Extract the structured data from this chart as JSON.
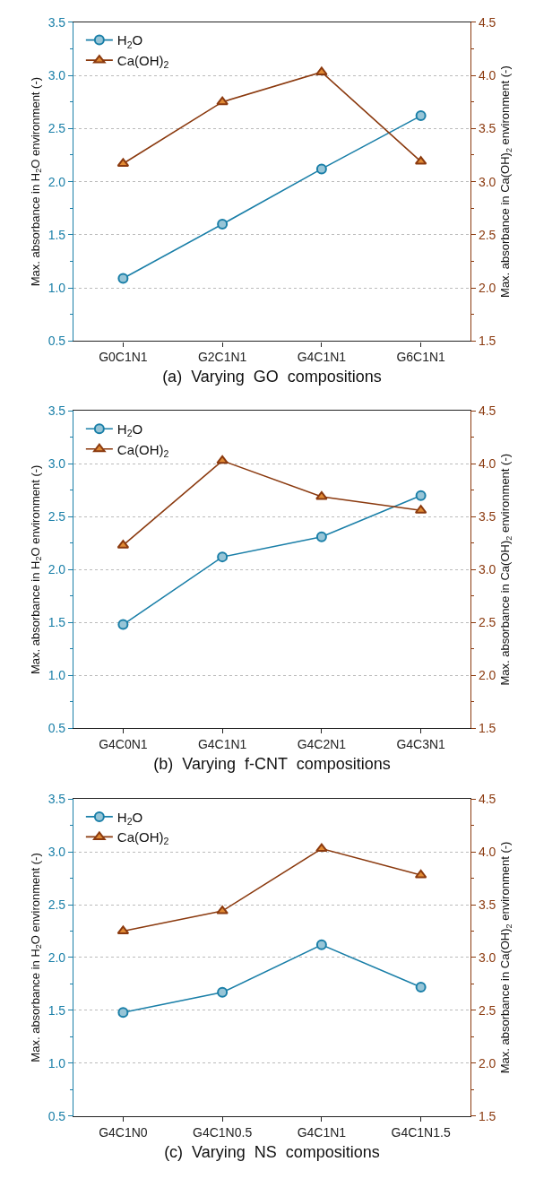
{
  "chart_data": [
    {
      "type": "line",
      "xlabel": "(a)  Varying  GO  compositions",
      "ylabel": "Max. absorbance in H$_{2}$O environment (-)",
      "y2label": "Max. absorbance in Ca(OH)$_{2}$ environment (-)",
      "categories": [
        "G0C1N1",
        "G2C1N1",
        "G4C1N1",
        "G6C1N1"
      ],
      "series": [
        {
          "name": "H$_{2}$O",
          "color": "#1a7fa8",
          "marker": "circle",
          "values": [
            1.09,
            1.6,
            2.12,
            2.62
          ]
        },
        {
          "name": "Ca(OH)$_{2}$",
          "color": "#8b3a0f",
          "marker": "triangle",
          "axis": "y2",
          "values": [
            3.17,
            3.75,
            4.03,
            3.19
          ]
        }
      ],
      "ylim": [
        0.5,
        3.5
      ],
      "yticks": [
        0.5,
        {
          "value": 1,
          "label": "1.0"
        },
        1.5,
        {
          "value": 2,
          "label": "2.0"
        },
        2.5,
        {
          "value": 3,
          "label": "3.0"
        },
        3.5
      ],
      "y2lim": [
        1.5,
        4.5
      ],
      "y2ticks": [
        1.5,
        {
          "value": 2,
          "label": "2.0"
        },
        2.5,
        {
          "value": 3,
          "label": "3.0"
        },
        3.5,
        {
          "value": 4,
          "label": "4.0"
        },
        4.5
      ],
      "grid": "y",
      "legend": "top left",
      "line_style": "solid"
    },
    {
      "type": "line",
      "xlabel": "(b)  Varying  f-CNT  compositions",
      "ylabel": "Max. absorbance in H$_{2}$O environment (-)",
      "y2label": "Max. absorbance in Ca(OH)$_{2}$ environment (-)",
      "categories": [
        "G4C0N1",
        "G4C1N1",
        "G4C2N1",
        "G4C3N1"
      ],
      "series": [
        {
          "name": "H$_{2}$O",
          "color": "#1a7fa8",
          "marker": "circle",
          "values": [
            1.48,
            2.12,
            2.31,
            2.7
          ]
        },
        {
          "name": "Ca(OH)$_{2}$",
          "color": "#8b3a0f",
          "marker": "triangle",
          "axis": "y2",
          "values": [
            3.23,
            4.03,
            3.69,
            3.56
          ]
        }
      ],
      "ylim": [
        0.5,
        3.5
      ],
      "yticks": [
        0.5,
        {
          "value": 1,
          "label": "1.0"
        },
        1.5,
        {
          "value": 2,
          "label": "2.0"
        },
        2.5,
        {
          "value": 3,
          "label": "3.0"
        },
        3.5
      ],
      "y2lim": [
        1.5,
        4.5
      ],
      "y2ticks": [
        1.5,
        {
          "value": 2,
          "label": "2.0"
        },
        2.5,
        {
          "value": 3,
          "label": "3.0"
        },
        3.5,
        {
          "value": 4,
          "label": "4.0"
        },
        4.5
      ],
      "grid": "y",
      "legend": "top left",
      "line_style": "solid"
    },
    {
      "type": "line",
      "xlabel": "(c)  Varying  NS  compositions",
      "ylabel": "Max. absorbance in H$_{2}$O environment (-)",
      "y2label": "Max. absorbance in Ca(OH)$_{2}$ environment (-)",
      "categories": [
        "G4C1N0",
        "G4C1N0.5",
        "G4C1N1",
        "G4C1N1.5"
      ],
      "series": [
        {
          "name": "H$_{2}$O",
          "color": "#1a7fa8",
          "marker": "circle",
          "values": [
            1.48,
            1.67,
            2.12,
            1.72
          ]
        },
        {
          "name": "Ca(OH)$_{2}$",
          "color": "#8b3a0f",
          "marker": "triangle",
          "axis": "y2",
          "values": [
            3.25,
            3.44,
            4.03,
            3.78
          ]
        }
      ],
      "ylim": [
        0.5,
        3.5
      ],
      "yticks": [
        0.5,
        {
          "value": 1,
          "label": "1.0"
        },
        1.5,
        {
          "value": 2,
          "label": "2.0"
        },
        2.5,
        {
          "value": 3,
          "label": "3.0"
        },
        3.5
      ],
      "y2lim": [
        1.5,
        4.5
      ],
      "y2ticks": [
        1.5,
        {
          "value": 2,
          "label": "2.0"
        },
        2.5,
        {
          "value": 3,
          "label": "3.0"
        },
        3.5,
        {
          "value": 4,
          "label": "4.0"
        },
        4.5
      ],
      "grid": "y",
      "legend": "top left",
      "line_style": "solid"
    }
  ]
}
